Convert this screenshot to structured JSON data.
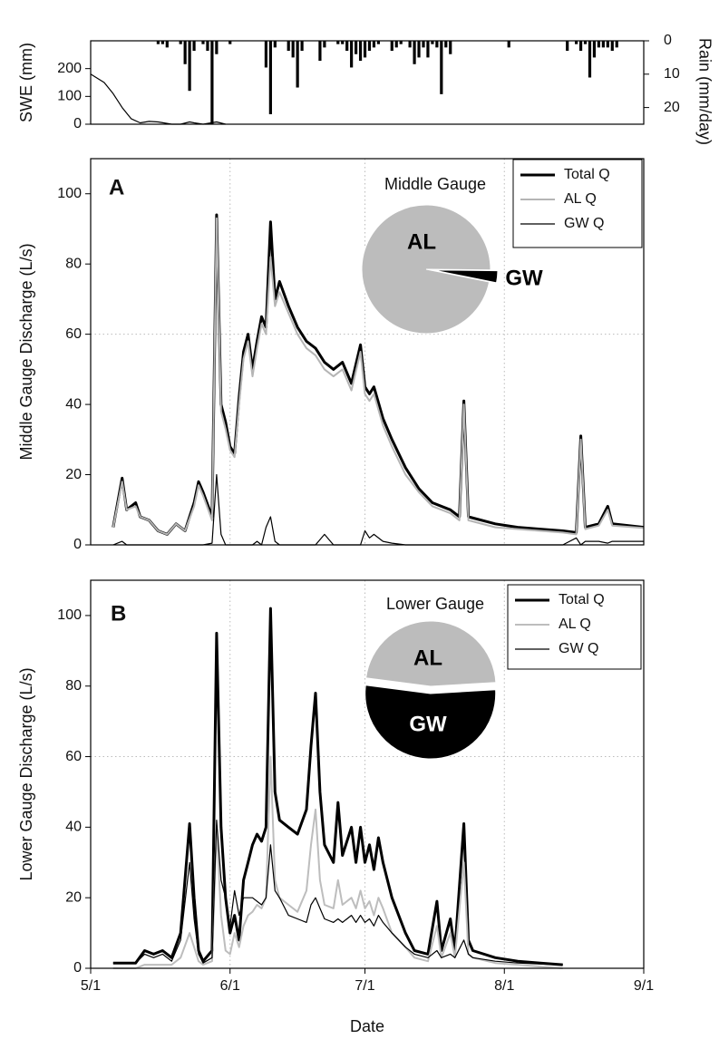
{
  "chart_data": [
    {
      "type": "combo",
      "ylabel": "SWE (mm)",
      "y2label": "Rain (mm/day)",
      "xlim": [
        0,
        123
      ],
      "ylim": [
        0,
        300
      ],
      "yticks": [
        0,
        100,
        200
      ],
      "y2lim": [
        0,
        25
      ],
      "y2ticks": [
        0,
        10,
        20
      ],
      "y2_inverted": true,
      "series": [
        {
          "type": "line",
          "color": "#000000",
          "x": [
            0,
            3,
            5,
            7,
            9,
            11,
            13,
            15,
            18,
            20,
            22,
            23,
            25,
            28,
            30
          ],
          "values": [
            180,
            150,
            110,
            60,
            20,
            5,
            10,
            8,
            0,
            0,
            8,
            5,
            0,
            8,
            0
          ]
        },
        {
          "type": "bar",
          "axis": "y2",
          "color": "#000000",
          "x": [
            15,
            16,
            17,
            20,
            21,
            22,
            23,
            25,
            26,
            27,
            28,
            31,
            39,
            40,
            41,
            44,
            45,
            46,
            47,
            51,
            52,
            55,
            56,
            57,
            58,
            59,
            60,
            61,
            62,
            63,
            64,
            67,
            68,
            69,
            71,
            72,
            73,
            74,
            75,
            76,
            77,
            78,
            79,
            80,
            93,
            106,
            108,
            109,
            110,
            111,
            112,
            113,
            114,
            115,
            116,
            117
          ],
          "values": [
            1,
            1,
            2,
            1,
            7,
            15,
            3,
            1,
            3,
            25,
            4,
            1,
            8,
            22,
            2,
            3,
            5,
            14,
            3,
            6,
            2,
            1,
            1,
            3,
            8,
            4,
            6,
            5,
            3,
            2,
            1,
            3,
            2,
            1,
            2,
            7,
            5,
            2,
            5,
            1,
            2,
            16,
            2,
            4,
            2,
            3,
            1,
            3,
            1,
            11,
            5,
            2,
            2,
            2,
            3,
            2
          ]
        }
      ]
    },
    {
      "type": "line",
      "panel": "A",
      "ylabel": "Middle Gauge Discharge (L/s)",
      "xlim": [
        0,
        123
      ],
      "xticks": [
        0,
        31,
        61,
        92,
        123
      ],
      "xgrid": true,
      "ylim": [
        0,
        110
      ],
      "yticks": [
        0,
        20,
        40,
        60,
        80,
        100
      ],
      "ygrid": [
        60
      ],
      "legend": "upper right",
      "x": [
        5,
        7,
        8,
        10,
        11,
        13,
        15,
        17,
        19,
        21,
        23,
        24,
        25,
        27,
        28,
        29,
        30,
        31,
        32,
        33,
        34,
        35,
        36,
        37,
        38,
        39,
        40,
        41,
        42,
        44,
        46,
        48,
        50,
        52,
        54,
        56,
        58,
        60,
        61,
        62,
        63,
        65,
        67,
        70,
        73,
        76,
        80,
        82,
        83,
        84,
        90,
        95,
        100,
        105,
        108,
        109,
        110,
        113,
        115,
        116,
        123
      ],
      "series": [
        {
          "name": "Total Q",
          "color": "#000000",
          "values": [
            5,
            19,
            10,
            12,
            8,
            7,
            4,
            3,
            6,
            4,
            12,
            18,
            15,
            8,
            94,
            40,
            35,
            28,
            26,
            42,
            55,
            60,
            50,
            58,
            65,
            62,
            92,
            70,
            75,
            68,
            62,
            58,
            56,
            52,
            50,
            52,
            46,
            57,
            45,
            43,
            45,
            36,
            30,
            22,
            16,
            12,
            10,
            8,
            41,
            8,
            6,
            5,
            4.5,
            4,
            3.5,
            31,
            5,
            6,
            11,
            6,
            5
          ]
        },
        {
          "name": "AL Q",
          "color": "#b5b5b5",
          "values": [
            5,
            18,
            10,
            11,
            8,
            7,
            4,
            3,
            6,
            4,
            11,
            17,
            14,
            7,
            93,
            38,
            33,
            27,
            25,
            40,
            53,
            58,
            48,
            56,
            63,
            60,
            82,
            68,
            72,
            66,
            60,
            56,
            54,
            50,
            48,
            50,
            44,
            55,
            43,
            41,
            43,
            34,
            28,
            20,
            15,
            11,
            9,
            7,
            40,
            7,
            5,
            4.5,
            4,
            3.5,
            3,
            30,
            4.5,
            5.5,
            10,
            5.5,
            4.8
          ]
        },
        {
          "name": "GW Q",
          "color": "#000000",
          "values": [
            0,
            1,
            0,
            0,
            0,
            0,
            0,
            0,
            0,
            0,
            0,
            0,
            0,
            0.5,
            20,
            3,
            0,
            0,
            0,
            0,
            0,
            0,
            0,
            1,
            0,
            5,
            8,
            1,
            0,
            0,
            0,
            0,
            0,
            3,
            0,
            0,
            0,
            0,
            4,
            2,
            3,
            1,
            0.5,
            0,
            0,
            0,
            0,
            0,
            0,
            0,
            0,
            0,
            0,
            0,
            2,
            0,
            1,
            1,
            0.5,
            1,
            1
          ]
        }
      ],
      "inset": {
        "type": "pie",
        "title": "Middle Gauge",
        "categories": [
          "AL",
          "GW"
        ],
        "values": [
          97,
          3
        ],
        "colors": [
          "#bcbcbc",
          "#000000"
        ]
      }
    },
    {
      "type": "line",
      "panel": "B",
      "ylabel": "Lower Gauge Discharge (L/s)",
      "xlabel": "Date",
      "xlim": [
        0,
        123
      ],
      "xticks": [
        {
          "value": 0,
          "label": "5/1"
        },
        {
          "value": 31,
          "label": "6/1"
        },
        {
          "value": 61,
          "label": "7/1"
        },
        {
          "value": 92,
          "label": "8/1"
        },
        {
          "value": 123,
          "label": "9/1"
        }
      ],
      "xgrid": true,
      "ylim": [
        0,
        110
      ],
      "yticks": [
        0,
        20,
        40,
        60,
        80,
        100
      ],
      "ygrid": [
        60
      ],
      "legend": "upper right",
      "x": [
        5,
        10,
        12,
        14,
        16,
        18,
        20,
        22,
        23,
        24,
        25,
        27,
        28,
        29,
        30,
        31,
        32,
        33,
        34,
        35,
        36,
        37,
        38,
        39,
        40,
        41,
        42,
        44,
        46,
        48,
        49,
        50,
        51,
        52,
        54,
        55,
        56,
        58,
        59,
        60,
        61,
        62,
        63,
        64,
        65,
        67,
        70,
        72,
        75,
        77,
        78,
        80,
        81,
        83,
        84,
        85,
        90,
        95,
        100,
        105
      ],
      "series": [
        {
          "name": "Total Q",
          "color": "#000000",
          "values": [
            1.5,
            1.5,
            5,
            4,
            5,
            3,
            10,
            41,
            20,
            5,
            2,
            5,
            95,
            40,
            20,
            10,
            15,
            8,
            25,
            30,
            35,
            38,
            36,
            40,
            102,
            50,
            42,
            40,
            38,
            45,
            63,
            78,
            50,
            35,
            30,
            47,
            32,
            40,
            30,
            40,
            30,
            35,
            28,
            37,
            30,
            20,
            10,
            5,
            4,
            19,
            5,
            14,
            5,
            41,
            8,
            5,
            3,
            2,
            1.5,
            1
          ]
        },
        {
          "name": "AL Q",
          "color": "#bdbdbd",
          "values": [
            0,
            0,
            1,
            1,
            1,
            1,
            3,
            10,
            6,
            2,
            1,
            2,
            40,
            15,
            5,
            4,
            10,
            6,
            12,
            15,
            16,
            18,
            17,
            20,
            60,
            25,
            20,
            18,
            16,
            22,
            35,
            45,
            25,
            18,
            17,
            25,
            18,
            20,
            17,
            22,
            17,
            19,
            15,
            20,
            17,
            10,
            6,
            3,
            2,
            12,
            3,
            10,
            3,
            30,
            4,
            3,
            1.5,
            1,
            0.5,
            0
          ]
        },
        {
          "name": "GW Q",
          "color": "#000000",
          "values": [
            1.5,
            1.5,
            4,
            3,
            4,
            2,
            8,
            30,
            14,
            4,
            1.5,
            3,
            42,
            25,
            20,
            12,
            22,
            15,
            20,
            20,
            20,
            19,
            18,
            20,
            35,
            22,
            20,
            15,
            14,
            13,
            18,
            20,
            17,
            14,
            13,
            14,
            13,
            15,
            13,
            15,
            13,
            14,
            12,
            15,
            13,
            10,
            6,
            4,
            3,
            5,
            3,
            4,
            3,
            8,
            4,
            3,
            2,
            1.5,
            1.2,
            1
          ]
        }
      ],
      "inset": {
        "type": "pie",
        "title": "Lower Gauge",
        "categories": [
          "AL",
          "GW"
        ],
        "values": [
          47,
          53
        ],
        "colors": [
          "#bcbcbc",
          "#000000"
        ]
      }
    }
  ]
}
